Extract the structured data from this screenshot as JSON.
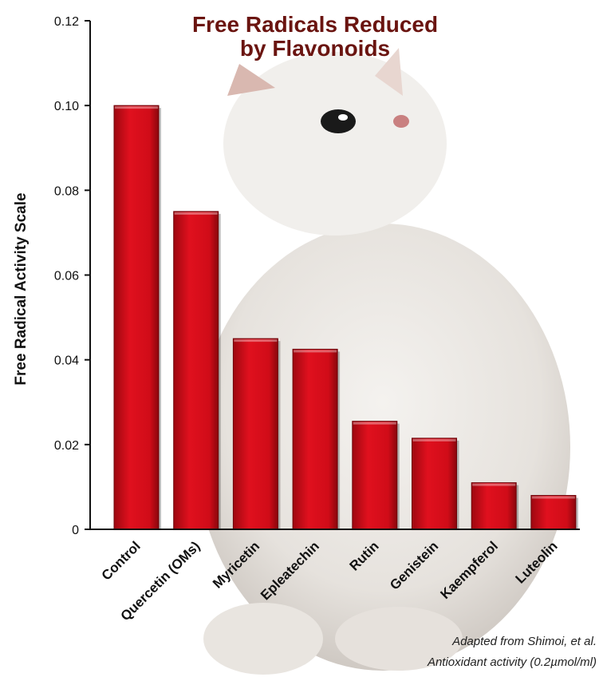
{
  "chart_data": {
    "type": "bar",
    "title": [
      "Free Radicals Reduced",
      "by Flavonoids"
    ],
    "xlabel": "",
    "ylabel": "Free Radical Activity Scale",
    "categories": [
      "Control",
      "Quercetin (OMs)",
      "Myricetin",
      "Epleatechin",
      "Rutin",
      "Genistein",
      "Kaempferol",
      "Luteolin"
    ],
    "values": [
      0.1,
      0.075,
      0.045,
      0.0425,
      0.0255,
      0.0215,
      0.011,
      0.008
    ],
    "ylim": [
      0,
      0.12
    ],
    "yticks": [
      {
        "value": 0,
        "label": "0"
      },
      {
        "value": 0.02,
        "label": "0.02"
      },
      {
        "value": 0.04,
        "label": "0.04"
      },
      {
        "value": 0.06,
        "label": "0.06"
      },
      {
        "value": 0.08,
        "label": "0.08"
      },
      {
        "value": 0.1,
        "label": "0.10"
      },
      {
        "value": 0.12,
        "label": "0.12"
      }
    ],
    "grid": false,
    "bar_color": "#e0101e",
    "title_color": "#6a1410",
    "annotations": [
      "Adapted from Shimoi, et al.",
      "Antioxidant activity (0.2µmol/ml)"
    ]
  }
}
